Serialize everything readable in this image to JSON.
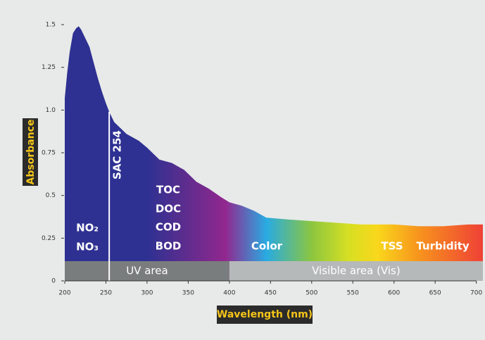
{
  "chart_data": {
    "type": "area",
    "x_label": "Wavelength (nm)",
    "y_label": "Absorbance",
    "label_colors": {
      "text": "#f5c518",
      "background": "#2b2b2b"
    },
    "xlim": [
      200,
      708
    ],
    "ylim": [
      0,
      1.5
    ],
    "xticks": [
      200,
      250,
      300,
      350,
      400,
      450,
      500,
      550,
      600,
      650,
      700
    ],
    "yticks": [
      0,
      0.25,
      0.5,
      0.75,
      {
        "value": 1.0,
        "label": "1.0"
      },
      1.25,
      1.5
    ],
    "series": [
      {
        "x": [
          200,
          203,
          206,
          210,
          214,
          217,
          220,
          225,
          230,
          235,
          240,
          245,
          250,
          254,
          260,
          275,
          290,
          300,
          315,
          330,
          345,
          360,
          375,
          390,
          400,
          415,
          430,
          445,
          470,
          500,
          530,
          560,
          600,
          630,
          660,
          690,
          708
        ],
        "values": [
          1.07,
          1.22,
          1.34,
          1.45,
          1.48,
          1.49,
          1.47,
          1.42,
          1.37,
          1.28,
          1.19,
          1.11,
          1.04,
          0.99,
          0.93,
          0.86,
          0.82,
          0.78,
          0.71,
          0.69,
          0.65,
          0.58,
          0.54,
          0.49,
          0.46,
          0.44,
          0.41,
          0.37,
          0.36,
          0.35,
          0.34,
          0.33,
          0.33,
          0.32,
          0.32,
          0.33,
          0.33
        ],
        "gradient": [
          {
            "at": 200,
            "color": "#2e3192"
          },
          {
            "at": 300,
            "color": "#2e3192"
          },
          {
            "at": 345,
            "color": "#5b2d8e"
          },
          {
            "at": 395,
            "color": "#92278f"
          },
          {
            "at": 445,
            "color": "#29abe2"
          },
          {
            "at": 500,
            "color": "#8cc63f"
          },
          {
            "at": 545,
            "color": "#d7df23"
          },
          {
            "at": 580,
            "color": "#f9d71c"
          },
          {
            "at": 630,
            "color": "#f7941d"
          },
          {
            "at": 708,
            "color": "#ef4136"
          }
        ]
      }
    ],
    "marker": {
      "x": 254,
      "label": "SAC 254",
      "color": "#ffffff"
    },
    "regions": [
      {
        "label": "UV area",
        "start": 200,
        "end": 400,
        "color": "#7a7d7d"
      },
      {
        "label": "Visible area (Vis)",
        "start": 400,
        "end": 708,
        "color": "#b6b9b9"
      }
    ],
    "annotations": [
      "NO₂",
      "NO₃",
      "TOC",
      "DOC",
      "COD",
      "BOD",
      "Color",
      "TSS",
      "Turbidity"
    ]
  }
}
